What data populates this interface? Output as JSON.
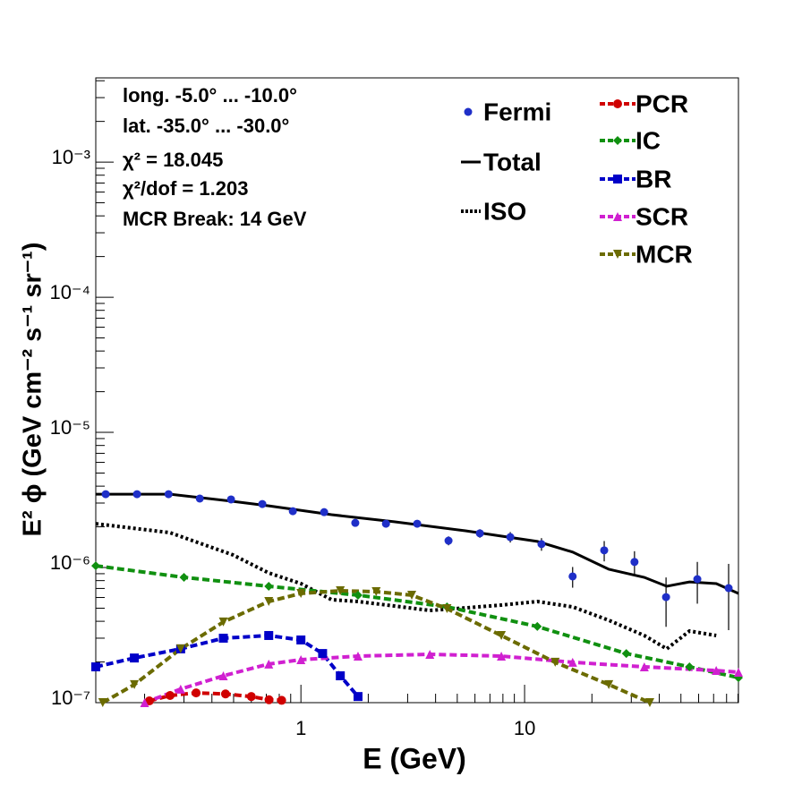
{
  "chart_data": {
    "type": "line",
    "xlabel": "E (GeV)",
    "ylabel": "E² ϕ (GeV cm⁻² s⁻¹ sr⁻¹)",
    "annotations": [
      "long. -5.0° ... -10.0°",
      "lat. -35.0° ... -30.0°",
      "χ² = 18.045",
      "χ²/dof = 1.203",
      "MCR Break: 14 GeV"
    ],
    "xscale": "log",
    "yscale": "log",
    "xlim": [
      0.121,
      90.4
    ],
    "ylim": [
      1e-07,
      0.0042
    ],
    "xticks": [
      1,
      10
    ],
    "xminorticks": [
      0.2,
      0.3,
      0.4,
      0.5,
      0.6,
      0.7,
      0.8,
      0.9,
      2,
      3,
      4,
      5,
      6,
      7,
      8,
      9,
      20,
      30,
      40,
      50,
      60,
      70,
      80,
      90
    ],
    "yticks": [
      {
        "value": 1e-07,
        "label": "10⁻⁷"
      },
      {
        "value": 1e-06,
        "label": "10⁻⁶"
      },
      {
        "value": 1e-05,
        "label": "10⁻⁵"
      },
      {
        "value": 0.0001,
        "label": "10⁻⁴"
      },
      {
        "value": 0.001,
        "label": "10⁻³"
      }
    ],
    "yminorticks": [
      2e-07,
      3e-07,
      4e-07,
      5e-07,
      6e-07,
      7e-07,
      8e-07,
      9e-07,
      2e-06,
      3e-06,
      4e-06,
      5e-06,
      6e-06,
      7e-06,
      8e-06,
      9e-06,
      2e-05,
      3e-05,
      4e-05,
      5e-05,
      6e-05,
      7e-05,
      8e-05,
      9e-05,
      0.0002,
      0.0003,
      0.0004,
      0.0005,
      0.0006,
      0.0007,
      0.0008,
      0.0009,
      0.002,
      0.003,
      0.004
    ],
    "series": [
      {
        "name": "Fermi",
        "color": "#1f2fc8",
        "style": "points",
        "x": [
          0.134,
          0.185,
          0.256,
          0.353,
          0.487,
          0.672,
          0.92,
          1.27,
          1.75,
          2.4,
          3.31,
          4.57,
          6.31,
          8.63,
          11.9,
          16.4,
          22.7,
          31.0,
          42.9,
          59.2,
          81.7
        ],
        "values": [
          3.49e-06,
          3.49e-06,
          3.49e-06,
          3.24e-06,
          3.19e-06,
          2.95e-06,
          2.61e-06,
          2.57e-06,
          2.14e-06,
          2.11e-06,
          2.11e-06,
          1.58e-06,
          1.79e-06,
          1.68e-06,
          1.49e-06,
          8.59e-07,
          1.34e-06,
          1.1e-06,
          6.04e-07,
          8.2e-07,
          7.04e-07
        ],
        "errors": [
          5e-08,
          5e-08,
          5e-08,
          5e-08,
          5e-08,
          5e-08,
          5e-08,
          5e-08,
          5e-08,
          5e-08,
          8e-08,
          1.2e-07,
          1.3e-07,
          1.5e-07,
          1.6e-07,
          1.5e-07,
          2.3e-07,
          2.2e-07,
          2.4e-07,
          2.8e-07,
          3.6e-07
        ]
      },
      {
        "name": "Total",
        "color": "#000000",
        "style": "solid",
        "x": [
          0.121,
          0.26,
          0.496,
          0.718,
          1.37,
          2.61,
          5.44,
          11.4,
          16.4,
          23.8,
          34.3,
          43.2,
          54.6,
          71.9,
          90.4
        ],
        "values": [
          3.49e-06,
          3.49e-06,
          3.09e-06,
          2.86e-06,
          2.46e-06,
          2.18e-06,
          1.87e-06,
          1.56e-06,
          1.3e-06,
          9.7e-07,
          8.46e-07,
          7.26e-07,
          7.83e-07,
          7.6e-07,
          6.43e-07
        ]
      },
      {
        "name": "ISO",
        "color": "#000000",
        "style": "dotted",
        "x": [
          0.121,
          0.26,
          0.496,
          0.718,
          1,
          1.37,
          1.8,
          2.61,
          3.77,
          5.44,
          7.87,
          11.4,
          16.4,
          23.8,
          34.3,
          43.2,
          54.6,
          71.9
        ],
        "values": [
          2.11e-06,
          1.81e-06,
          1.24e-06,
          9.12e-07,
          7.6e-07,
          5.78e-07,
          5.6e-07,
          5.19e-07,
          4.81e-07,
          5.03e-07,
          5.27e-07,
          5.6e-07,
          5.11e-07,
          4.07e-07,
          3.14e-07,
          2.5e-07,
          3.39e-07,
          3.14e-07
        ]
      },
      {
        "name": "PCR",
        "color": "#d00000",
        "style": "dashed",
        "marker": "circle",
        "x": [
          0.21,
          0.26,
          0.34,
          0.46,
          0.6,
          0.72,
          0.82
        ],
        "values": [
          1.03e-07,
          1.13e-07,
          1.18e-07,
          1.16e-07,
          1.11e-07,
          1.05e-07,
          1.04e-07
        ]
      },
      {
        "name": "IC",
        "color": "#109010",
        "style": "dashed",
        "marker": "diamond",
        "x": [
          0.121,
          0.3,
          0.718,
          1.8,
          4.5,
          11.4,
          28.5,
          54.6,
          90.4
        ],
        "values": [
          1.03e-06,
          8.46e-07,
          7.26e-07,
          6.24e-07,
          5.11e-07,
          3.66e-07,
          2.31e-07,
          1.84e-07,
          1.53e-07
        ]
      },
      {
        "name": "BR",
        "color": "#0000c8",
        "style": "dashed",
        "marker": "square",
        "x": [
          0.121,
          0.18,
          0.29,
          0.45,
          0.718,
          1,
          1.25,
          1.5,
          1.8
        ],
        "values": [
          1.84e-07,
          2.14e-07,
          2.5e-07,
          3e-07,
          3.14e-07,
          2.91e-07,
          2.31e-07,
          1.58e-07,
          1.11e-07
        ]
      },
      {
        "name": "SCR",
        "color": "#d020d0",
        "style": "dashed",
        "marker": "triangle-up",
        "x": [
          0.2,
          0.29,
          0.45,
          0.718,
          1,
          1.8,
          3.77,
          7.87,
          16.4,
          34.3,
          71.9,
          90.4
        ],
        "values": [
          1e-07,
          1.26e-07,
          1.58e-07,
          1.93e-07,
          2.08e-07,
          2.21e-07,
          2.28e-07,
          2.21e-07,
          1.99e-07,
          1.84e-07,
          1.73e-07,
          1.68e-07
        ]
      },
      {
        "name": "MCR",
        "color": "#6b6b00",
        "style": "dashed",
        "marker": "triangle-down",
        "x": [
          0.13,
          0.18,
          0.29,
          0.45,
          0.718,
          1,
          1.5,
          2.17,
          3.13,
          4.5,
          7.87,
          13.7,
          23.8,
          36.3
        ],
        "values": [
          1e-07,
          1.36e-07,
          2.5e-07,
          3.95e-07,
          5.6e-07,
          6.43e-07,
          6.73e-07,
          6.63e-07,
          6.24e-07,
          4.96e-07,
          3.14e-07,
          1.99e-07,
          1.36e-07,
          1e-07
        ]
      }
    ]
  }
}
